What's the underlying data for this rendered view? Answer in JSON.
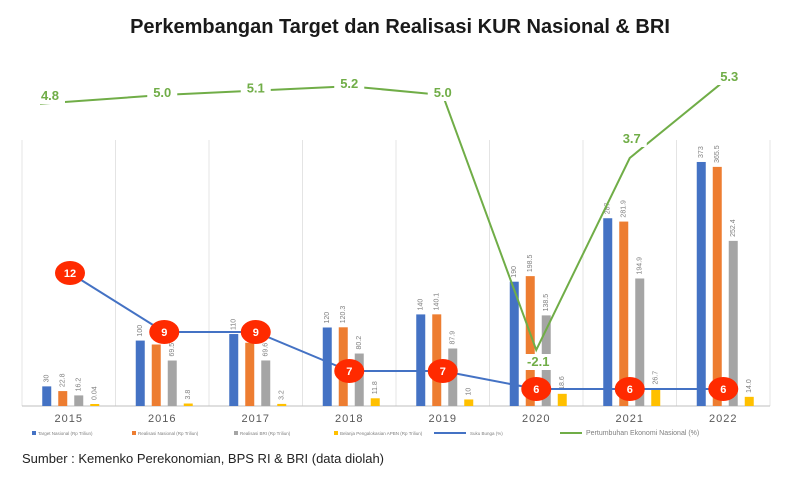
{
  "title": "Perkembangan Target dan Realisasi KUR Nasional & BRI",
  "source": "Sumber : Kemenko Perekonomian, BPS RI & BRI (data diolah)",
  "colors": {
    "target": "#4472c4",
    "realisasi_nasional": "#ed7d31",
    "realisasi_bri": "#a5a5a5",
    "subsidi": "#ffc000",
    "suku_bunga": "#4472c4",
    "pertumbuhan": "#70ad47",
    "bubble": "#ff2a00"
  },
  "chart_data": {
    "type": "bar",
    "categories": [
      "2015",
      "2016",
      "2017",
      "2018",
      "2019",
      "2020",
      "2021",
      "2022"
    ],
    "ylim": [
      0,
      400
    ],
    "series": [
      {
        "name": "Target Nasional (Rp Triliun)",
        "key": "target",
        "values": [
          30,
          100,
          110,
          120,
          140,
          190,
          287,
          373
        ],
        "labels": [
          "30",
          "100",
          "110",
          "120",
          "140",
          "190",
          "287",
          "373"
        ]
      },
      {
        "name": "Realisasi Nasional (Rp Triliun)",
        "key": "realisasi_nasional",
        "values": [
          22.8,
          94.0,
          96.7,
          120.3,
          140.1,
          198.5,
          281.9,
          365.5
        ],
        "labels": [
          "22.8",
          "94.0",
          "96.7",
          "120.3",
          "140.1",
          "198.5",
          "281.9",
          "365.5"
        ]
      },
      {
        "name": "Realisasi BRI (Rp Triliun)",
        "key": "realisasi_bri",
        "values": [
          16.2,
          69.5,
          69.6,
          80.2,
          87.9,
          138.5,
          194.9,
          252.4
        ],
        "labels": [
          "16.2",
          "69.5",
          "69.6",
          "80.2",
          "87.9",
          "138.5",
          "194.9",
          "252.4"
        ]
      },
      {
        "name": "Belanja Pengalokasian APBN (Rp Triliun)",
        "key": "subsidi",
        "values": [
          0.04,
          3.8,
          3.2,
          11.8,
          10,
          18.6,
          26.7,
          14.0
        ],
        "labels": [
          "0.04",
          "3.8",
          "3.2",
          "11.8",
          "10",
          "18.6",
          "26.7",
          "14.0"
        ]
      }
    ],
    "lines": [
      {
        "name": "Suku Bunga (%)",
        "key": "suku_bunga",
        "values": [
          12,
          9,
          9,
          7,
          7,
          6,
          6,
          6
        ]
      },
      {
        "name": "Pertumbuhan Ekonomi Nasional (%)",
        "key": "pertumbuhan",
        "values": [
          4.8,
          5.0,
          5.1,
          5.2,
          5.0,
          -2.1,
          3.7,
          5.3
        ],
        "labels": [
          "4.8",
          "5.0",
          "5.1",
          "5.2",
          "5.0",
          "-2.1",
          "3.7",
          "5.3"
        ]
      }
    ]
  }
}
